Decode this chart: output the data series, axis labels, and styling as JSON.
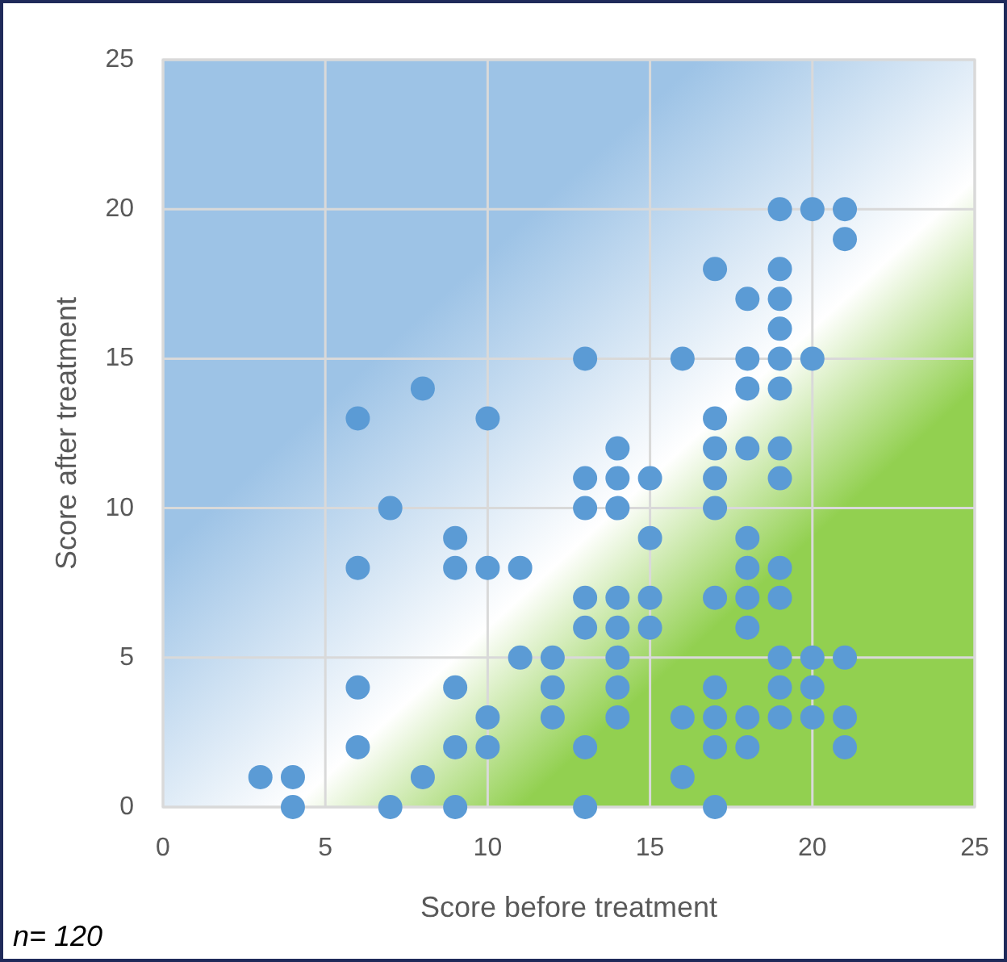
{
  "chart_data": {
    "type": "scatter",
    "xlabel": "Score before treatment",
    "ylabel": "Score after treatment",
    "annotations": [
      "n= 120"
    ],
    "xlim": [
      0,
      25
    ],
    "ylim": [
      0,
      25
    ],
    "xticks": [
      0,
      5,
      10,
      15,
      20,
      25
    ],
    "yticks": [
      0,
      5,
      10,
      15,
      20,
      25
    ],
    "grid": true,
    "marker": "circle",
    "series": [
      {
        "color": "#5b9bd5",
        "x": [
          3,
          4,
          4,
          6,
          6,
          6,
          6,
          7,
          7,
          8,
          8,
          9,
          9,
          9,
          9,
          9,
          10,
          10,
          10,
          10,
          11,
          11,
          12,
          12,
          12,
          13,
          13,
          13,
          13,
          13,
          13,
          13,
          14,
          14,
          14,
          14,
          14,
          14,
          14,
          14,
          15,
          15,
          15,
          15,
          16,
          16,
          16,
          17,
          17,
          17,
          17,
          17,
          17,
          17,
          17,
          17,
          17,
          18,
          18,
          18,
          18,
          18,
          18,
          18,
          18,
          18,
          18,
          19,
          19,
          19,
          19,
          19,
          19,
          19,
          19,
          19,
          19,
          19,
          19,
          19,
          20,
          20,
          20,
          20,
          20,
          21,
          21,
          21,
          21,
          21
        ],
        "values": [
          1,
          1,
          0,
          13,
          8,
          4,
          2,
          10,
          0,
          14,
          1,
          9,
          8,
          4,
          2,
          0,
          13,
          8,
          3,
          2,
          8,
          5,
          5,
          4,
          3,
          15,
          11,
          10,
          7,
          6,
          2,
          0,
          12,
          11,
          10,
          7,
          6,
          5,
          4,
          3,
          11,
          9,
          7,
          6,
          15,
          3,
          1,
          18,
          13,
          12,
          11,
          10,
          7,
          4,
          3,
          2,
          0,
          17,
          15,
          14,
          12,
          9,
          8,
          7,
          6,
          3,
          2,
          20,
          18,
          17,
          16,
          15,
          14,
          12,
          11,
          8,
          7,
          5,
          4,
          3,
          20,
          15,
          5,
          4,
          3,
          20,
          19,
          5,
          3,
          2
        ]
      }
    ]
  }
}
